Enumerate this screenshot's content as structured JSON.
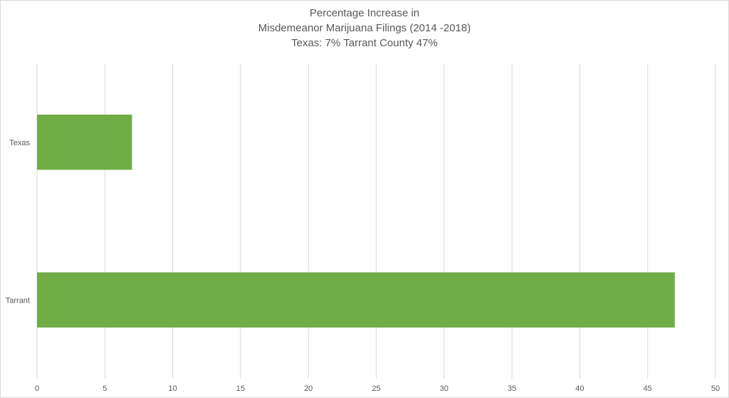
{
  "chart_data": {
    "type": "bar",
    "orientation": "horizontal",
    "title_lines": [
      "Percentage Increase in",
      "Misdemeanor Marijuana Filings (2014 -2018)",
      "Texas: 7% Tarrant County 47%"
    ],
    "categories": [
      "Texas",
      "Tarrant"
    ],
    "values": [
      7,
      47
    ],
    "xlim": [
      0,
      50
    ],
    "x_ticks": [
      0,
      5,
      10,
      15,
      20,
      25,
      30,
      35,
      40,
      45,
      50
    ],
    "xlabel": "",
    "ylabel": "",
    "grid": "vertical",
    "legend": "none",
    "bar_color": "#70ad47",
    "gridline_color": "#d9d9d9"
  }
}
